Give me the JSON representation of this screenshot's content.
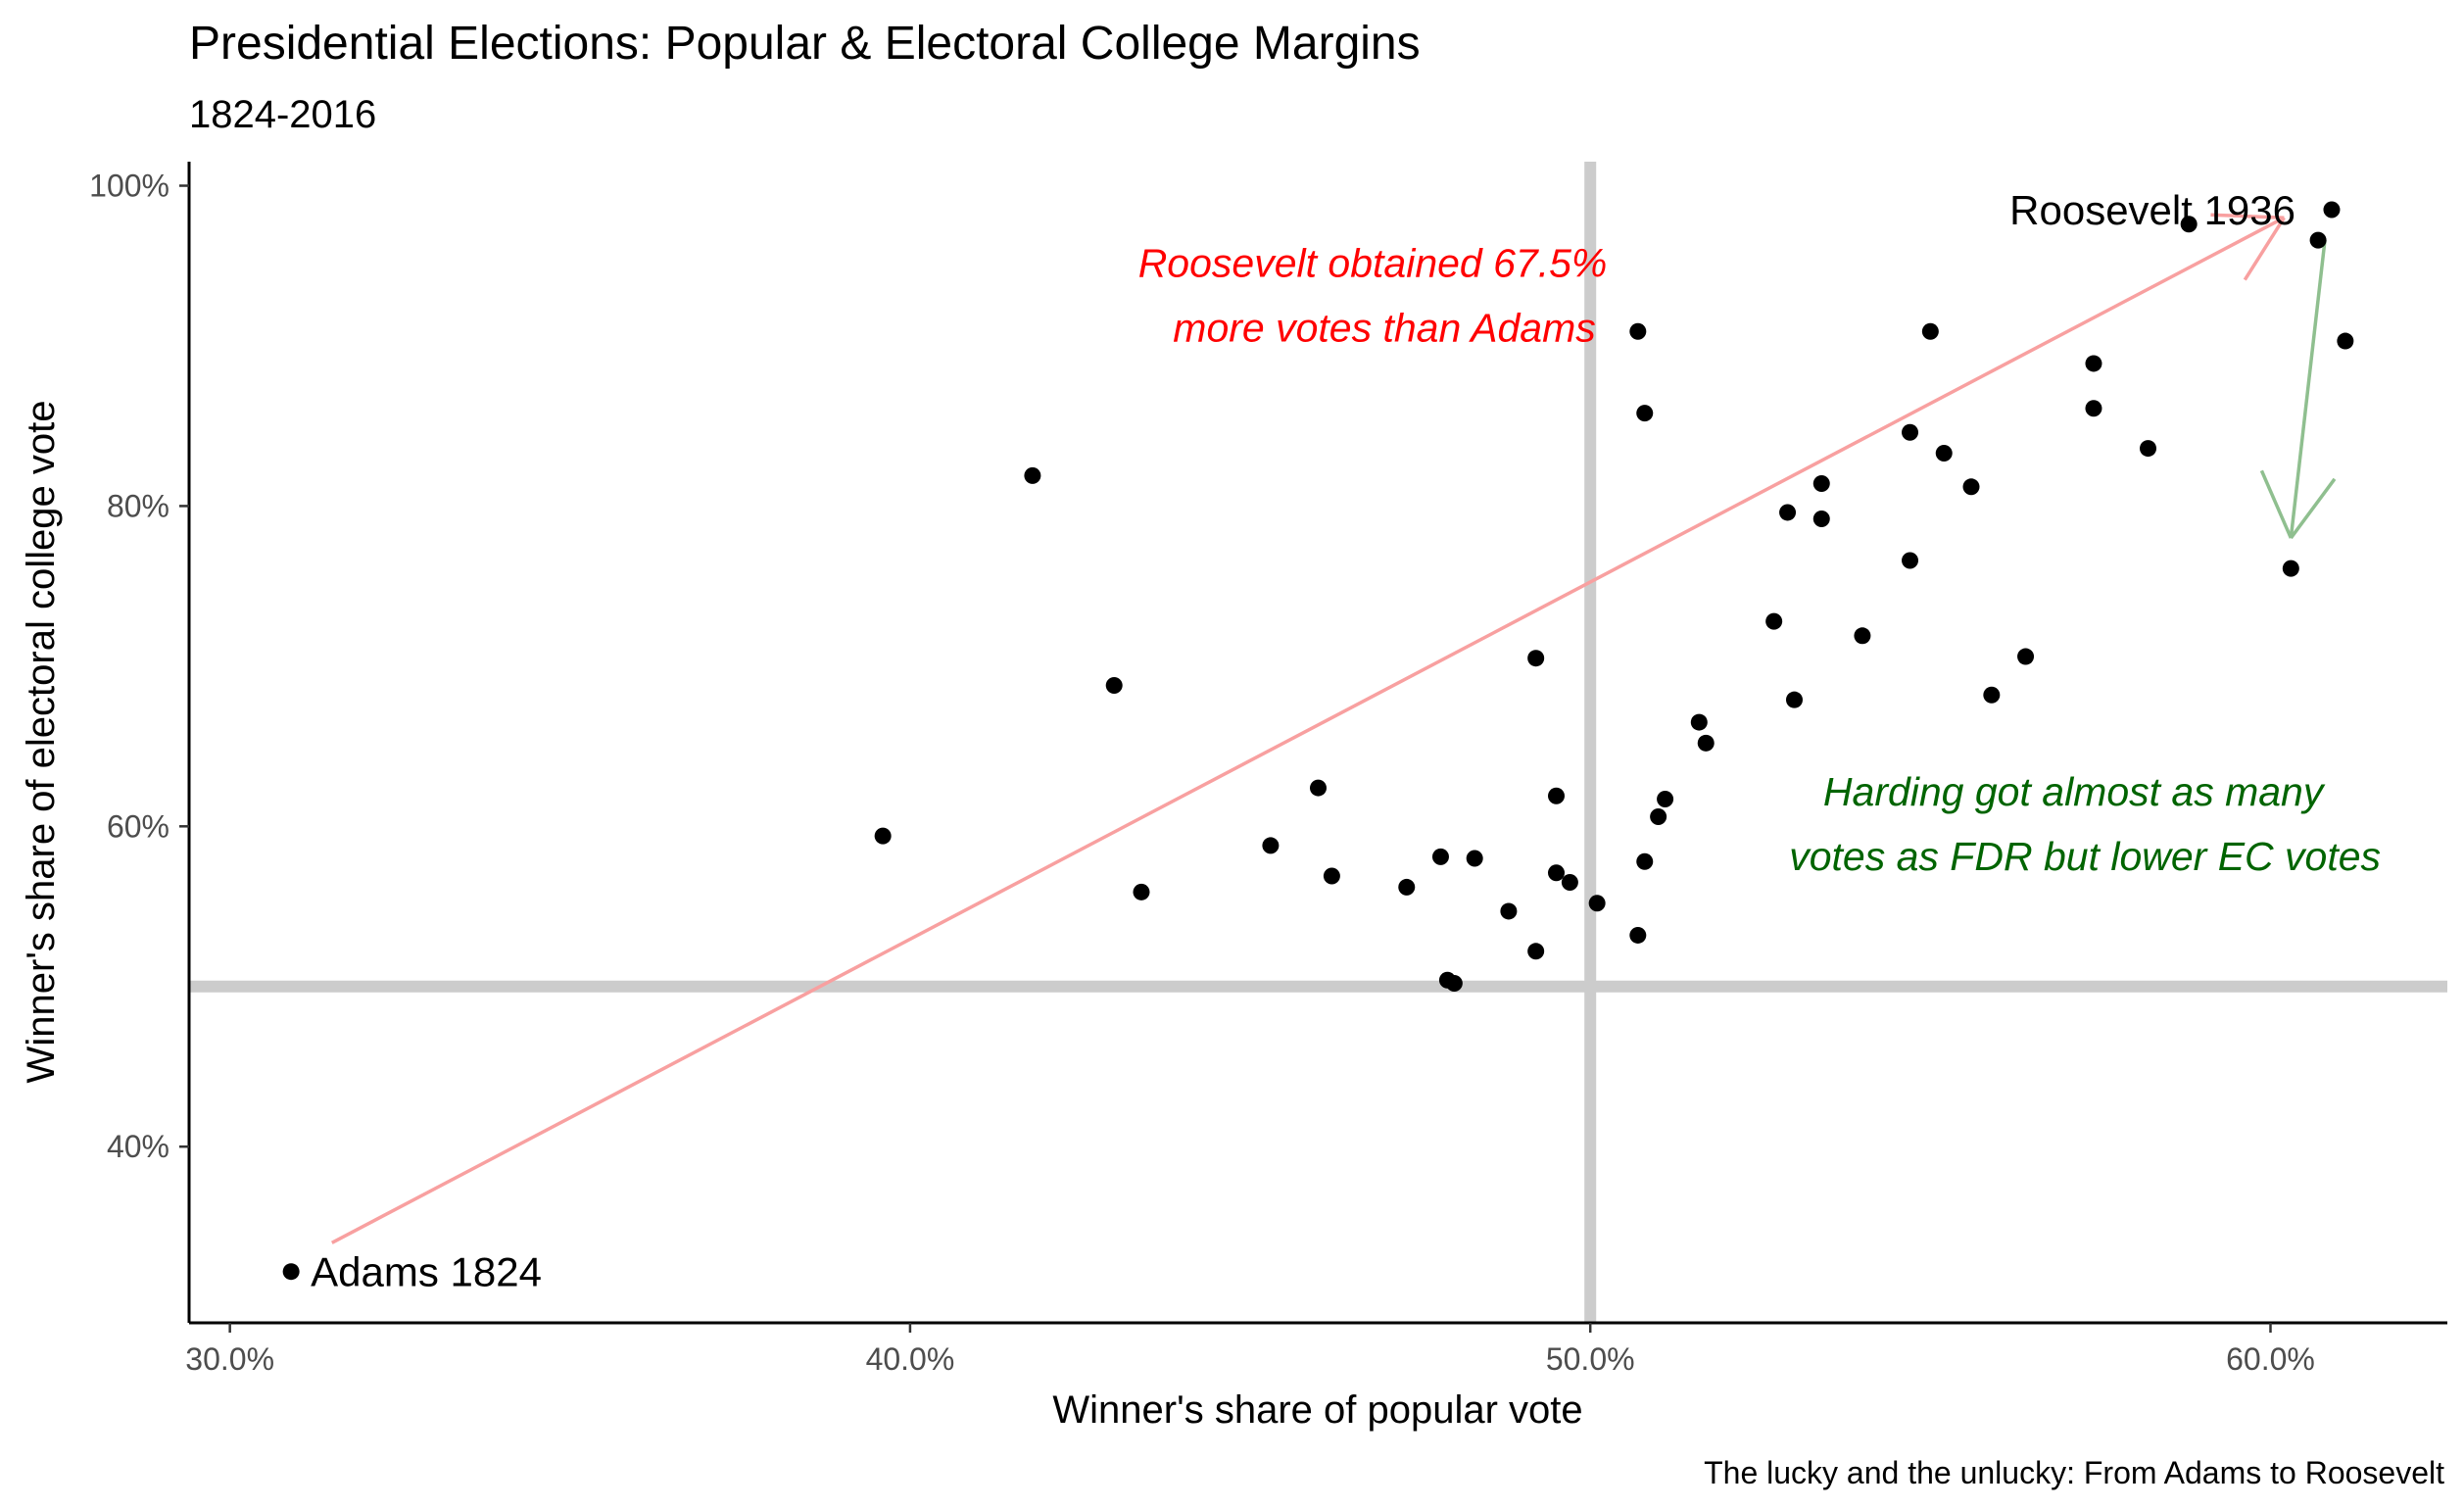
{
  "chart_data": {
    "type": "scatter",
    "title": "Presidential Elections: Popular & Electoral College Margins",
    "subtitle": "1824-2016",
    "xlabel": "Winner's share of popular vote",
    "ylabel": "Winner's share of electoral college vote",
    "caption": "The lucky and the unlucky: From Adams to Roosevelt",
    "xlim": [
      29.4,
      62.6
    ],
    "ylim": [
      29.0,
      101.5
    ],
    "x_ticks": [
      {
        "value": 30,
        "label": "30.0%"
      },
      {
        "value": 40,
        "label": "40.0%"
      },
      {
        "value": 50,
        "label": "50.0%"
      },
      {
        "value": 60,
        "label": "60.0%"
      }
    ],
    "y_ticks": [
      {
        "value": 40,
        "label": "40%"
      },
      {
        "value": 60,
        "label": "60%"
      },
      {
        "value": 80,
        "label": "80%"
      },
      {
        "value": 100,
        "label": "100%"
      }
    ],
    "reference_lines": {
      "x": 50,
      "y": 50,
      "color": "#cccccc"
    },
    "grid": false,
    "points": [
      {
        "x": 30.9,
        "y": 32.2
      },
      {
        "x": 39.6,
        "y": 59.4
      },
      {
        "x": 41.8,
        "y": 81.9
      },
      {
        "x": 43.0,
        "y": 68.8
      },
      {
        "x": 43.4,
        "y": 55.9
      },
      {
        "x": 45.3,
        "y": 58.8
      },
      {
        "x": 46.0,
        "y": 62.4
      },
      {
        "x": 46.2,
        "y": 56.9
      },
      {
        "x": 47.3,
        "y": 56.2
      },
      {
        "x": 47.8,
        "y": 58.1
      },
      {
        "x": 47.9,
        "y": 50.4
      },
      {
        "x": 48.0,
        "y": 50.2
      },
      {
        "x": 48.3,
        "y": 58.0
      },
      {
        "x": 48.8,
        "y": 54.7
      },
      {
        "x": 49.2,
        "y": 70.5
      },
      {
        "x": 49.2,
        "y": 52.2
      },
      {
        "x": 49.5,
        "y": 61.9
      },
      {
        "x": 49.5,
        "y": 57.1
      },
      {
        "x": 49.7,
        "y": 56.5
      },
      {
        "x": 50.1,
        "y": 55.2
      },
      {
        "x": 50.7,
        "y": 90.9
      },
      {
        "x": 50.7,
        "y": 53.2
      },
      {
        "x": 50.8,
        "y": 85.8
      },
      {
        "x": 50.8,
        "y": 57.8
      },
      {
        "x": 51.0,
        "y": 60.6
      },
      {
        "x": 51.1,
        "y": 61.7
      },
      {
        "x": 51.6,
        "y": 66.5
      },
      {
        "x": 51.7,
        "y": 65.2
      },
      {
        "x": 52.7,
        "y": 72.8
      },
      {
        "x": 52.9,
        "y": 79.6
      },
      {
        "x": 53.0,
        "y": 67.9
      },
      {
        "x": 53.4,
        "y": 81.4
      },
      {
        "x": 53.4,
        "y": 79.2
      },
      {
        "x": 54.0,
        "y": 71.9
      },
      {
        "x": 54.7,
        "y": 84.6
      },
      {
        "x": 54.7,
        "y": 76.6
      },
      {
        "x": 55.0,
        "y": 90.9
      },
      {
        "x": 55.2,
        "y": 83.3
      },
      {
        "x": 55.6,
        "y": 81.2
      },
      {
        "x": 55.9,
        "y": 68.2
      },
      {
        "x": 56.4,
        "y": 70.6
      },
      {
        "x": 57.4,
        "y": 88.9
      },
      {
        "x": 57.4,
        "y": 86.1
      },
      {
        "x": 58.2,
        "y": 83.6
      },
      {
        "x": 58.8,
        "y": 97.6
      },
      {
        "x": 60.3,
        "y": 76.1
      },
      {
        "x": 60.7,
        "y": 96.6
      },
      {
        "x": 60.9,
        "y": 98.5
      },
      {
        "x": 61.1,
        "y": 90.3
      }
    ],
    "point_labels": [
      {
        "text": "Adams 1824",
        "x": 30.9,
        "y": 32.2
      },
      {
        "text": "Roosevelt 1936",
        "x": 60.8,
        "y": 98.5
      }
    ],
    "arrows": [
      {
        "from": [
          31.5,
          34.0
        ],
        "to": [
          60.2,
          98.0
        ],
        "color": "#f8a0a0"
      },
      {
        "from": [
          60.8,
          96.6
        ],
        "to": [
          60.3,
          78.0
        ],
        "color": "#8fbf8f"
      }
    ],
    "annotations": [
      {
        "lines": [
          "Roosevelt obtained 67.5%",
          "more votes than Adams"
        ],
        "color": "#ff0000",
        "x": 46.8,
        "y": 94.3
      },
      {
        "lines": [
          "Harding got almost as many",
          "votes as FDR but lower EC votes"
        ],
        "color": "#006400",
        "x": 57.1,
        "y": 61.3
      }
    ],
    "colors": {
      "point": "#000000",
      "axis": "#000000",
      "tick_label": "#4d4d4d",
      "reference": "#cccccc",
      "red_annotation": "#ff0000",
      "green_annotation": "#006400"
    }
  }
}
